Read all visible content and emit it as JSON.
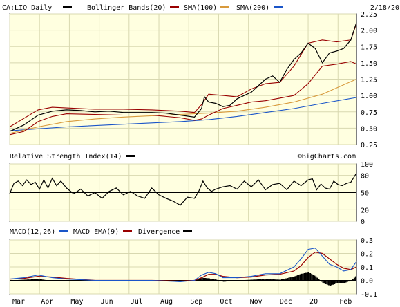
{
  "chart_data": [
    {
      "type": "line",
      "title": "CA:LIO Daily",
      "date_label": "2/18/20",
      "legend": [
        {
          "label": "CA:LIO Daily",
          "color": "#000000"
        },
        {
          "label": "Bollinger Bands(20)",
          "color": "#000000"
        },
        {
          "label": "SMA(100)",
          "color": "#990000"
        },
        {
          "label": "SMA(200)",
          "color": "#d89a3c"
        },
        {
          "label": "",
          "color": "#1a55c8"
        }
      ],
      "ylim": [
        0.25,
        2.25
      ],
      "yticks": [
        "2.25",
        "2.00",
        "1.75",
        "1.50",
        "1.25",
        "1.00",
        "0.75",
        "0.50",
        "0.25"
      ],
      "x_months": [
        "Mar",
        "Apr",
        "May",
        "Jun",
        "Jul",
        "Aug",
        "Sep",
        "Oct",
        "Nov",
        "Dec",
        "20",
        "Feb"
      ],
      "x_month_index": [
        0,
        21,
        42,
        63,
        84,
        105,
        126,
        147,
        168,
        189,
        210,
        231
      ],
      "series": [
        {
          "name": "CA:LIO Daily",
          "color": "#000000",
          "x": [
            0,
            5,
            10,
            20,
            30,
            40,
            50,
            60,
            70,
            80,
            90,
            100,
            110,
            120,
            130,
            135,
            137,
            140,
            145,
            150,
            155,
            160,
            165,
            170,
            175,
            180,
            185,
            190,
            195,
            200,
            205,
            210,
            215,
            220,
            225,
            230,
            235,
            240,
            244
          ],
          "values": [
            0.45,
            0.5,
            0.55,
            0.7,
            0.76,
            0.78,
            0.77,
            0.75,
            0.76,
            0.74,
            0.74,
            0.74,
            0.73,
            0.7,
            0.67,
            0.8,
            0.98,
            0.9,
            0.88,
            0.83,
            0.85,
            0.95,
            1.0,
            1.05,
            1.15,
            1.25,
            1.3,
            1.2,
            1.4,
            1.55,
            1.65,
            1.8,
            1.72,
            1.5,
            1.65,
            1.68,
            1.72,
            1.85,
            2.12
          ]
        },
        {
          "name": "Bollinger Upper",
          "color": "#990000",
          "x": [
            0,
            10,
            20,
            30,
            40,
            60,
            80,
            100,
            120,
            130,
            135,
            140,
            150,
            160,
            170,
            180,
            190,
            200,
            210,
            220,
            230,
            240,
            244
          ],
          "values": [
            0.52,
            0.65,
            0.78,
            0.82,
            0.81,
            0.79,
            0.79,
            0.78,
            0.76,
            0.74,
            0.86,
            1.02,
            1.0,
            0.98,
            1.1,
            1.18,
            1.2,
            1.45,
            1.8,
            1.85,
            1.82,
            1.85,
            2.1
          ]
        },
        {
          "name": "Bollinger Lower",
          "color": "#990000",
          "x": [
            0,
            10,
            20,
            30,
            40,
            60,
            80,
            100,
            120,
            130,
            135,
            140,
            150,
            160,
            170,
            180,
            190,
            200,
            210,
            220,
            230,
            240,
            244
          ],
          "values": [
            0.4,
            0.45,
            0.6,
            0.68,
            0.72,
            0.71,
            0.7,
            0.7,
            0.66,
            0.62,
            0.64,
            0.7,
            0.8,
            0.85,
            0.9,
            0.92,
            0.96,
            1.0,
            1.18,
            1.45,
            1.48,
            1.52,
            1.48
          ]
        },
        {
          "name": "SMA(100)",
          "color": "#d89a3c",
          "x": [
            0,
            20,
            40,
            60,
            80,
            100,
            120,
            140,
            160,
            180,
            200,
            220,
            244
          ],
          "values": [
            0.42,
            0.52,
            0.6,
            0.64,
            0.67,
            0.69,
            0.71,
            0.73,
            0.76,
            0.82,
            0.9,
            1.02,
            1.25
          ]
        },
        {
          "name": "SMA(200)",
          "color": "#1a55c8",
          "x": [
            0,
            40,
            80,
            120,
            140,
            160,
            180,
            200,
            220,
            244
          ],
          "values": [
            0.46,
            0.52,
            0.56,
            0.6,
            0.63,
            0.68,
            0.74,
            0.8,
            0.88,
            0.97
          ]
        }
      ]
    },
    {
      "type": "line",
      "title": "Relative Strength Index(14)",
      "credit": "©BigCharts.com",
      "ylim": [
        0,
        100
      ],
      "yticks": [
        "100",
        "80",
        "50",
        "20",
        "0"
      ],
      "reference_line": 50,
      "series": [
        {
          "name": "Relative Strength Index(14)",
          "color": "#000000",
          "x": [
            0,
            3,
            6,
            9,
            12,
            15,
            18,
            21,
            24,
            27,
            30,
            33,
            36,
            40,
            45,
            50,
            55,
            60,
            65,
            70,
            75,
            80,
            85,
            90,
            95,
            100,
            105,
            110,
            115,
            120,
            125,
            130,
            133,
            136,
            139,
            142,
            145,
            150,
            155,
            160,
            165,
            170,
            175,
            180,
            185,
            190,
            195,
            200,
            205,
            210,
            213,
            216,
            219,
            222,
            225,
            228,
            231,
            234,
            237,
            240,
            244
          ],
          "values": [
            48,
            66,
            70,
            62,
            72,
            64,
            68,
            56,
            72,
            58,
            75,
            62,
            70,
            58,
            48,
            56,
            44,
            50,
            40,
            52,
            58,
            46,
            52,
            44,
            40,
            58,
            46,
            40,
            35,
            28,
            42,
            40,
            52,
            70,
            58,
            52,
            56,
            60,
            62,
            56,
            70,
            60,
            72,
            55,
            64,
            66,
            55,
            70,
            62,
            72,
            74,
            55,
            65,
            58,
            56,
            70,
            64,
            62,
            66,
            68,
            84
          ]
        }
      ]
    },
    {
      "type": "line",
      "title": "MACD(12,26)",
      "ylim": [
        -0.1,
        0.3
      ],
      "yticks": [
        "0.3",
        "0.2",
        "0.1",
        "0.0",
        "-0.1"
      ],
      "legend": [
        {
          "label": "MACD(12,26)",
          "color": "#1a55c8"
        },
        {
          "label": "MACD EMA(9)",
          "color": "#990000"
        },
        {
          "label": "Divergence",
          "color": "#000000"
        }
      ],
      "series": [
        {
          "name": "MACD(12,26)",
          "color": "#1a55c8",
          "x": [
            0,
            10,
            20,
            30,
            40,
            60,
            80,
            100,
            120,
            130,
            135,
            140,
            145,
            150,
            160,
            170,
            180,
            190,
            200,
            205,
            210,
            215,
            220,
            225,
            230,
            235,
            240,
            244
          ],
          "values": [
            0.01,
            0.02,
            0.04,
            0.02,
            0.01,
            0.0,
            0.0,
            0.0,
            -0.01,
            0.0,
            0.04,
            0.06,
            0.05,
            0.02,
            0.02,
            0.03,
            0.05,
            0.05,
            0.1,
            0.16,
            0.23,
            0.24,
            0.18,
            0.12,
            0.1,
            0.07,
            0.08,
            0.14
          ]
        },
        {
          "name": "MACD EMA(9)",
          "color": "#990000",
          "x": [
            0,
            10,
            20,
            30,
            40,
            60,
            80,
            100,
            120,
            130,
            135,
            140,
            145,
            150,
            160,
            170,
            180,
            190,
            200,
            205,
            210,
            215,
            220,
            225,
            230,
            235,
            240,
            244
          ],
          "values": [
            0.01,
            0.015,
            0.03,
            0.025,
            0.015,
            0.0,
            0.0,
            0.0,
            -0.005,
            0.0,
            0.02,
            0.045,
            0.045,
            0.03,
            0.02,
            0.025,
            0.04,
            0.045,
            0.07,
            0.11,
            0.17,
            0.21,
            0.2,
            0.16,
            0.12,
            0.09,
            0.08,
            0.1
          ]
        }
      ],
      "divergence": {
        "x": [
          0,
          10,
          20,
          30,
          40,
          60,
          80,
          100,
          120,
          130,
          135,
          140,
          145,
          150,
          160,
          170,
          180,
          190,
          200,
          205,
          210,
          215,
          220,
          225,
          230,
          235,
          240,
          244
        ],
        "values": [
          0.0,
          0.005,
          0.01,
          -0.005,
          -0.005,
          0.0,
          0.0,
          0.0,
          -0.005,
          0.0,
          0.02,
          0.015,
          0.005,
          -0.01,
          0.0,
          0.005,
          0.01,
          0.005,
          0.03,
          0.05,
          0.06,
          0.03,
          -0.02,
          -0.04,
          -0.02,
          -0.02,
          0.0,
          0.04
        ]
      }
    }
  ]
}
